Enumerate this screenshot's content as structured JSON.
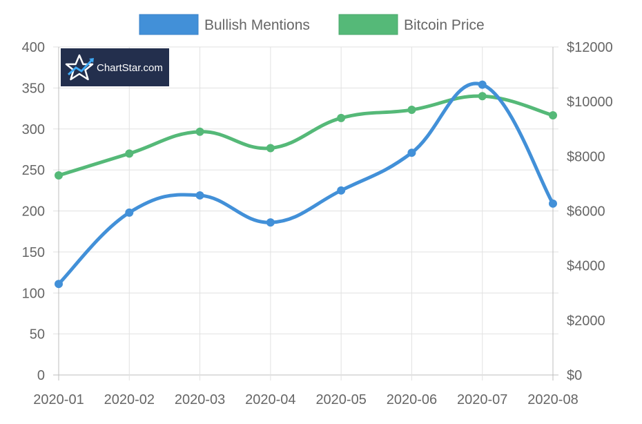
{
  "legend": {
    "items": [
      {
        "label": "Bullish Mentions",
        "color": "#4290d8"
      },
      {
        "label": "Bitcoin Price",
        "color": "#55b978"
      }
    ]
  },
  "logo": {
    "text": "ChartStar.com",
    "icon": "star-icon",
    "background": "#232f4d"
  },
  "chart_data": {
    "type": "line",
    "categories": [
      "2020-01",
      "2020-02",
      "2020-03",
      "2020-04",
      "2020-05",
      "2020-06",
      "2020-07",
      "2020-08"
    ],
    "series": [
      {
        "name": "Bullish Mentions",
        "axis": "left",
        "color": "#4290d8",
        "values": [
          111,
          198,
          219,
          186,
          225,
          271,
          354,
          209
        ]
      },
      {
        "name": "Bitcoin Price",
        "axis": "right",
        "color": "#55b978",
        "values": [
          7300,
          8100,
          8900,
          8300,
          9400,
          9700,
          10200,
          9500
        ]
      }
    ],
    "y_left": {
      "min": 0,
      "max": 400,
      "step": 50,
      "ticks": [
        "0",
        "50",
        "100",
        "150",
        "200",
        "250",
        "300",
        "350",
        "400"
      ]
    },
    "y_right": {
      "min": 0,
      "max": 12000,
      "step": 2000,
      "ticks": [
        "$0",
        "$2000",
        "$4000",
        "$6000",
        "$8000",
        "$10000",
        "$12000"
      ]
    },
    "grid": true,
    "legend_position": "top-center",
    "smooth": true,
    "markers": true
  }
}
